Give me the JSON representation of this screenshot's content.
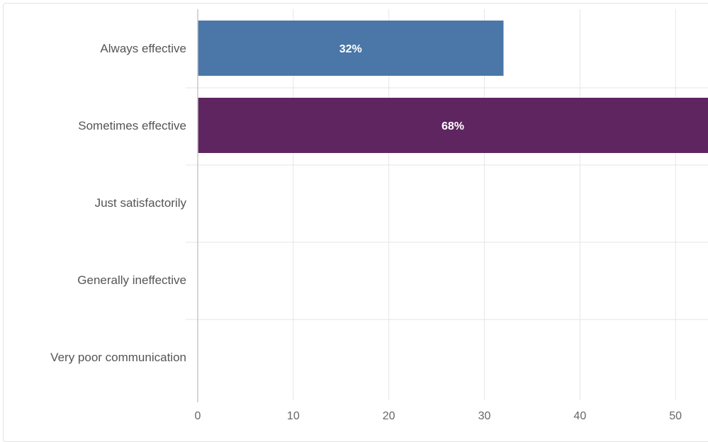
{
  "chart_data": {
    "type": "bar",
    "orientation": "horizontal",
    "categories": [
      "Always effective",
      "Sometimes effective",
      "Just satisfactorily",
      "Generally ineffective",
      "Very poor communication"
    ],
    "values": [
      32,
      68,
      0,
      0,
      0
    ],
    "data_labels": [
      "32%",
      "68%",
      "",
      "",
      ""
    ],
    "bar_colors": [
      "#4a76a8",
      "#5e2560",
      "#4a76a8",
      "#5e2560",
      "#4a76a8"
    ],
    "x_ticks": [
      "0",
      "10",
      "20",
      "30",
      "40",
      "50"
    ],
    "xlim": [
      0,
      53.4
    ],
    "grid": true,
    "legend": false
  }
}
